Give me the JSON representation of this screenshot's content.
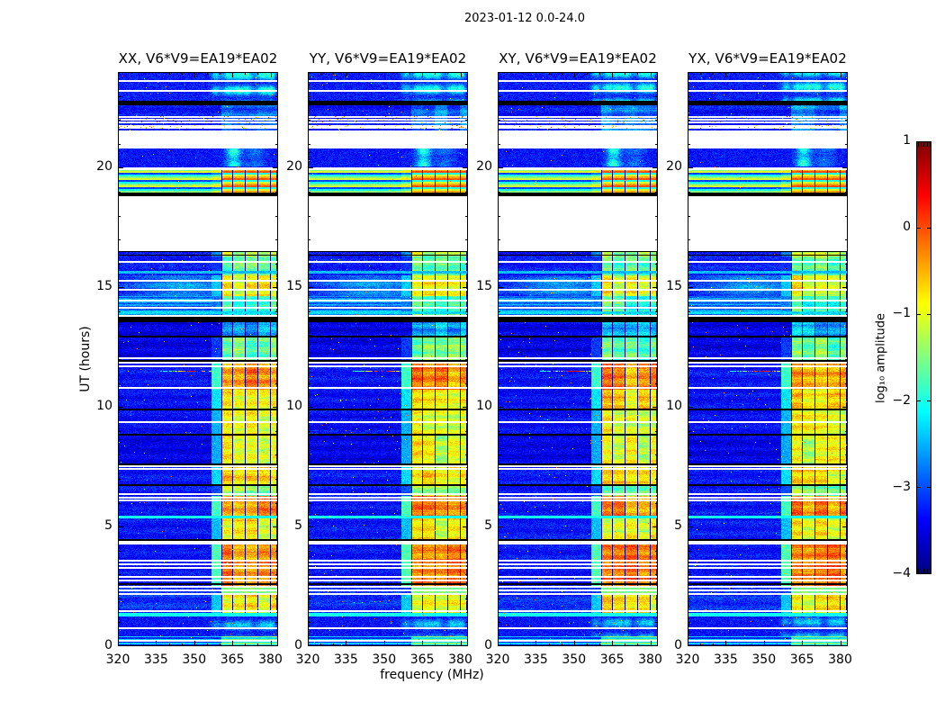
{
  "figure": {
    "title": "2023-01-12 0.0-24.0",
    "xlabel": "frequency (MHz)",
    "ylabel": "UT (hours)",
    "colorbar_label": "log₁₀ amplitude",
    "background_color": "#ffffff",
    "axis_color": "#000000"
  },
  "chart_data": {
    "type": "heatmap",
    "description": "Four dynamic-spectrum (frequency vs UT time) panels of log10 amplitude for polarization products XX, YY, XY, YX of baseline V6*V9=EA19*EA02, jet colormap, with shared colorbar.",
    "panels": [
      {
        "label": "XX, V6*V9=EA19*EA02",
        "seed": 101
      },
      {
        "label": "YY, V6*V9=EA19*EA02",
        "seed": 202
      },
      {
        "label": "XY, V6*V9=EA19*EA02",
        "seed": 303
      },
      {
        "label": "YX, V6*V9=EA19*EA02",
        "seed": 404
      }
    ],
    "x_axis": {
      "label": "frequency (MHz)",
      "range": [
        320,
        383
      ],
      "ticks": [
        320,
        335,
        350,
        365,
        380
      ],
      "tick_labels": [
        "320",
        "335",
        "350",
        "365",
        "380"
      ],
      "minor_step": 5
    },
    "y_axis": {
      "label": "UT (hours)",
      "range": [
        0,
        24
      ],
      "ticks": [
        0,
        5,
        10,
        15,
        20
      ],
      "tick_labels": [
        "0",
        "5",
        "10",
        "15",
        "20"
      ],
      "minor_step": 1
    },
    "colorbar": {
      "label": "log₁₀ amplitude",
      "range": [
        -4,
        1
      ],
      "ticks": [
        1,
        0,
        -1,
        -2,
        -3,
        -4
      ],
      "tick_labels": [
        "1",
        "0",
        "−1",
        "−2",
        "−3",
        "−4"
      ],
      "colormap": "jet",
      "low_color": "#00008f",
      "high_color": "#800000"
    },
    "band": {
      "f0": 360.6,
      "f1": 382.4,
      "gridlines": [
        360.8,
        364.9,
        369.9,
        374.9,
        379.9,
        382.2
      ],
      "edge_f0": 356.8,
      "edge_f1": 359.8
    },
    "streak_columns": [
      [
        358.5,
        1.3,
        0.7
      ],
      [
        363.2,
        1.6,
        0.85
      ],
      [
        367.6,
        1.9,
        1.0
      ],
      [
        371.2,
        1.2,
        0.8
      ],
      [
        377.2,
        2.3,
        1.0
      ],
      [
        380.6,
        1.1,
        0.7
      ]
    ],
    "segments": [
      {
        "t0": 0.0,
        "t1": 0.42,
        "bg": -3.25,
        "band": -1.6,
        "type": "rows2"
      },
      {
        "t0": 0.42,
        "t1": 1.26,
        "bg": -3.3,
        "band": null,
        "type": "streaks",
        "amp": 0.95
      },
      {
        "t0": 1.26,
        "t1": 1.4,
        "bg": -2.05,
        "band": -2.05,
        "type": "flat"
      },
      {
        "t0": 1.4,
        "t1": 2.16,
        "bg": -3.15,
        "band": -1.0
      },
      {
        "t0": 2.52,
        "t1": 4.28,
        "bg": -3.3,
        "band": -0.35
      },
      {
        "t0": 4.28,
        "t1": 5.33,
        "bg": -3.3,
        "band": -1.05
      },
      {
        "t0": 5.33,
        "t1": 5.45,
        "bg": -2.05,
        "band": -2.05,
        "type": "flat"
      },
      {
        "t0": 5.45,
        "t1": 6.28,
        "bg": -3.3,
        "band": -0.4
      },
      {
        "t0": 6.28,
        "t1": 6.72,
        "bg": -3.3,
        "band": -1.6
      },
      {
        "t0": 6.72,
        "t1": 7.35,
        "bg": -3.3,
        "band": -0.9
      },
      {
        "t0": 7.35,
        "t1": 7.58,
        "bg": -3.3,
        "band": -0.9
      },
      {
        "t0": 7.58,
        "t1": 8.82,
        "bg": -3.5,
        "band": -1.15
      },
      {
        "t0": 8.82,
        "t1": 9.85,
        "bg": -3.35,
        "band": -1.1
      },
      {
        "t0": 9.85,
        "t1": 10.72,
        "bg": -3.35,
        "band": -0.85
      },
      {
        "t0": 10.72,
        "t1": 11.88,
        "bg": -3.3,
        "band": -0.45
      },
      {
        "t0": 11.88,
        "t1": 12.95,
        "bg": -3.5,
        "band": -1.7
      },
      {
        "t0": 12.95,
        "t1": 13.78,
        "bg": -3.5,
        "band": -2.6
      },
      {
        "t0": 13.78,
        "t1": 14.62,
        "bg": -2.75,
        "band": -1.9,
        "type": "wide"
      },
      {
        "t0": 14.62,
        "t1": 15.48,
        "bg": -3.2,
        "band": -1.0,
        "type": "swirl"
      },
      {
        "t0": 15.48,
        "t1": 16.3,
        "bg": -3.25,
        "band": -1.8
      },
      {
        "t0": 16.3,
        "t1": 16.52,
        "bg": -3.3,
        "band": -1.3
      },
      {
        "t0": 18.95,
        "t1": 19.9,
        "bg": -3.05,
        "band": -0.3,
        "type": "stripes"
      },
      {
        "t0": 20.05,
        "t1": 20.81,
        "bg": -3.3,
        "band": null,
        "type": "streak20"
      },
      {
        "t0": 21.54,
        "t1": 22.62,
        "bg": -3.3,
        "band": -2.9
      },
      {
        "t0": 22.8,
        "t1": 24.01,
        "bg": -3.25,
        "band": null,
        "type": "streaks",
        "amp": 1.35
      }
    ],
    "white_gaps": [
      [
        2.16,
        2.52
      ],
      [
        16.52,
        18.82
      ],
      [
        20.81,
        21.54
      ]
    ],
    "black_gaps": [
      [
        13.55,
        13.78
      ],
      [
        18.82,
        18.95
      ],
      [
        22.62,
        22.8
      ]
    ],
    "gap_blue_lines": [
      2.28,
      2.42
    ],
    "white_lines": [
      [
        23.63,
        2
      ],
      [
        23.2,
        2
      ],
      [
        22.12,
        1.5
      ],
      [
        22.02,
        1.5
      ],
      [
        21.92,
        1.5
      ],
      [
        21.77,
        1.5
      ],
      [
        21.67,
        1.5
      ],
      [
        19.97,
        3
      ],
      [
        16.08,
        2
      ],
      [
        15.28,
        1.5
      ],
      [
        14.92,
        1.5
      ],
      [
        14.45,
        2
      ],
      [
        14.15,
        2
      ],
      [
        13.82,
        1.5
      ],
      [
        12.05,
        2
      ],
      [
        11.85,
        2
      ],
      [
        11.72,
        1.5
      ],
      [
        10.78,
        2
      ],
      [
        9.35,
        2
      ],
      [
        7.54,
        1.5
      ],
      [
        7.42,
        1.5
      ],
      [
        6.36,
        1.5
      ],
      [
        6.21,
        1.5
      ],
      [
        6.1,
        1.5
      ],
      [
        4.35,
        3.5
      ],
      [
        3.57,
        1.5
      ],
      [
        3.42,
        1.5
      ],
      [
        3.27,
        1.5
      ],
      [
        2.92,
        1.5
      ],
      [
        2.77,
        1.5
      ],
      [
        1.48,
        2
      ],
      [
        0.75,
        1.5
      ],
      [
        0.25,
        1.5
      ]
    ],
    "black_lines": [
      [
        16.5,
        1.2
      ],
      [
        16.33,
        1.2
      ],
      [
        12.95,
        1.5
      ],
      [
        11.95,
        1.5
      ],
      [
        9.9,
        2
      ],
      [
        8.85,
        1.5
      ],
      [
        7.62,
        1.5
      ],
      [
        6.73,
        1.5
      ],
      [
        4.45,
        1.5
      ],
      [
        2.6,
        1.8
      ]
    ],
    "light_rows": [
      [
        15.62,
        3,
        -2.45
      ],
      [
        13.95,
        3,
        -2.3
      ]
    ],
    "rfi_streak": {
      "t": 11.52,
      "f0": 336.5,
      "f1": 356.5,
      "peak_f": 349.5
    }
  }
}
